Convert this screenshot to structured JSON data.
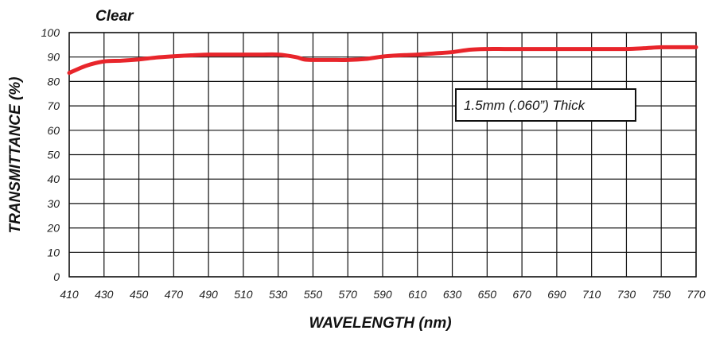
{
  "chart_data": {
    "type": "line",
    "title": "Clear",
    "xlabel": "WAVELENGTH (nm)",
    "ylabel": "TRANSMITTANCE (%)",
    "xlim": [
      410,
      770
    ],
    "ylim": [
      0,
      100
    ],
    "x_ticks": [
      "410",
      "430",
      "450",
      "470",
      "490",
      "510",
      "530",
      "550",
      "570",
      "590",
      "610",
      "630",
      "650",
      "670",
      "690",
      "710",
      "730",
      "750",
      "770"
    ],
    "y_ticks": [
      "0",
      "10",
      "20",
      "30",
      "40",
      "50",
      "60",
      "70",
      "80",
      "90",
      "100"
    ],
    "grid": true,
    "annotation": "1.5mm (.060”) Thick",
    "line_color": "#e8252b",
    "series": [
      {
        "x": [
          410,
          420,
          430,
          440,
          450,
          460,
          470,
          480,
          490,
          500,
          510,
          520,
          530,
          540,
          545,
          550,
          560,
          570,
          580,
          590,
          600,
          610,
          620,
          630,
          640,
          650,
          660,
          670,
          680,
          690,
          700,
          710,
          720,
          730,
          740,
          750,
          760,
          770
        ],
        "y": [
          83.5,
          86.5,
          88.2,
          88.5,
          89,
          89.8,
          90.3,
          90.7,
          91,
          91,
          91,
          91,
          91,
          90,
          89,
          88.8,
          88.8,
          88.8,
          89.2,
          90.2,
          90.7,
          91,
          91.5,
          92,
          93,
          93.3,
          93.3,
          93.3,
          93.3,
          93.3,
          93.3,
          93.3,
          93.3,
          93.3,
          93.6,
          94,
          94,
          94
        ]
      }
    ]
  }
}
